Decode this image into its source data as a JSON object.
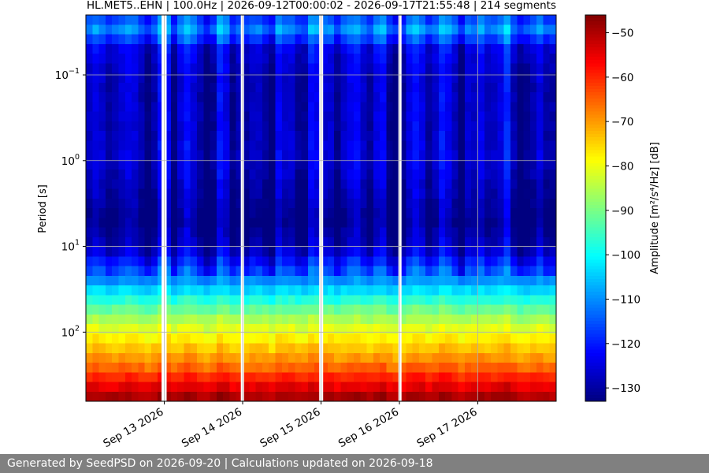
{
  "footer": {
    "text": "Generated by SeedPSD on 2026-09-20 | Calculations updated on 2026-09-18"
  },
  "chart_data": {
    "type": "heatmap",
    "title": "HL.MET5..EHN | 100.0Hz | 2026-09-12T00:00:02 - 2026-09-17T21:55:48 | 214 segments",
    "ylabel": "Period [s]",
    "xlabel": "",
    "colorbar_label": "Amplitude [m²/s⁴/Hz] [dB]",
    "colormap": "jet",
    "y_scale": "log",
    "y_inverted": true,
    "xlim": [
      "2026-09-12T00:00:00",
      "2026-09-17T23:59:00"
    ],
    "ylim": [
      0.02,
      640
    ],
    "x_ticks": [
      {
        "date": "2026-09-13",
        "label": "Sep 13 2026"
      },
      {
        "date": "2026-09-14",
        "label": "Sep 14 2026"
      },
      {
        "date": "2026-09-15",
        "label": "Sep 15 2026"
      },
      {
        "date": "2026-09-16",
        "label": "Sep 16 2026"
      },
      {
        "date": "2026-09-17",
        "label": "Sep 17 2026"
      }
    ],
    "y_ticks": [
      {
        "value": 0.1,
        "base": "10",
        "exp": "−1"
      },
      {
        "value": 1,
        "base": "10",
        "exp": "0"
      },
      {
        "value": 10,
        "base": "10",
        "exp": "1"
      },
      {
        "value": 100,
        "base": "10",
        "exp": "2"
      }
    ],
    "colorbar_range": [
      -133,
      -46
    ],
    "colorbar_ticks": [
      {
        "value": -50,
        "label": "−50"
      },
      {
        "value": -60,
        "label": "−60"
      },
      {
        "value": -70,
        "label": "−70"
      },
      {
        "value": -80,
        "label": "−80"
      },
      {
        "value": -90,
        "label": "−90"
      },
      {
        "value": -100,
        "label": "−100"
      },
      {
        "value": -110,
        "label": "−110"
      },
      {
        "value": -120,
        "label": "−120"
      },
      {
        "value": -130,
        "label": "−130"
      }
    ],
    "grid": true,
    "data_gaps": [
      "2026-09-12T23:40",
      "2026-09-13T00:15",
      "2026-09-13T23:55",
      "2026-09-14T23:55",
      "2026-09-15T00:10",
      "2026-09-16T00:10"
    ],
    "amplitude_profile_by_period": [
      {
        "period": 0.02,
        "db": -117
      },
      {
        "period": 0.03,
        "db": -110
      },
      {
        "period": 0.05,
        "db": -124
      },
      {
        "period": 0.1,
        "db": -127
      },
      {
        "period": 0.5,
        "db": -127
      },
      {
        "period": 1,
        "db": -126
      },
      {
        "period": 3,
        "db": -130
      },
      {
        "period": 5,
        "db": -132
      },
      {
        "period": 10,
        "db": -128
      },
      {
        "period": 20,
        "db": -115
      },
      {
        "period": 30,
        "db": -105
      },
      {
        "period": 50,
        "db": -93
      },
      {
        "period": 80,
        "db": -83
      },
      {
        "period": 150,
        "db": -74
      },
      {
        "period": 250,
        "db": -66
      },
      {
        "period": 400,
        "db": -56
      },
      {
        "period": 640,
        "db": -47
      }
    ]
  }
}
